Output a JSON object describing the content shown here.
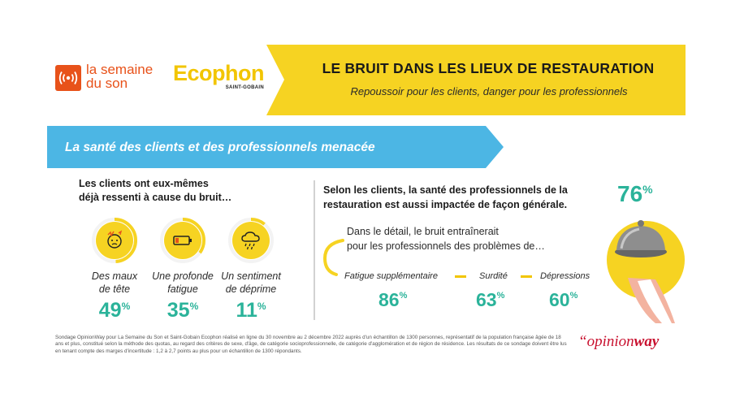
{
  "header": {
    "brand1_line1": "la semaine",
    "brand1_line2": "du son",
    "brand2": "Ecophon",
    "brand2_sub": "SAINT-GOBAIN",
    "title": "LE BRUIT DANS LES LIEUX DE RESTAURATION",
    "subtitle": "Repoussoir pour les clients, danger pour les professionnels"
  },
  "section": {
    "banner": "La santé des clients et des professionnels menacée"
  },
  "left": {
    "heading_line1": "Les clients ont eux-mêmes",
    "heading_line2": "déjà ressenti à cause du bruit…",
    "items": [
      {
        "icon": "headache-icon",
        "label1": "Des maux",
        "label2": "de tête",
        "value": "49",
        "unit": "%",
        "fraction": 0.49
      },
      {
        "icon": "low-battery-icon",
        "label1": "Une profonde",
        "label2": "fatigue",
        "value": "35",
        "unit": "%",
        "fraction": 0.35
      },
      {
        "icon": "rain-cloud-icon",
        "label1": "Un sentiment",
        "label2": "de déprime",
        "value": "11",
        "unit": "%",
        "fraction": 0.11
      }
    ]
  },
  "right": {
    "heading_line1": "Selon les clients, la santé des professionnels de la",
    "heading_line2": "restauration est aussi impactée de façon générale.",
    "main_value": "76",
    "main_unit": "%",
    "detail_line1": "Dans le détail, le bruit entraînerait",
    "detail_line2": "pour les professionnels des problèmes de…",
    "items": [
      {
        "label": "Fatigue supplémentaire",
        "value": "86",
        "unit": "%"
      },
      {
        "label": "Surdité",
        "value": "63",
        "unit": "%"
      },
      {
        "label": "Dépressions",
        "value": "60",
        "unit": "%"
      }
    ]
  },
  "footer": {
    "note": "Sondage OpinionWay pour La Semaine du Son et Saint-Gobain Ecophon réalisé en ligne du 30 novembre au 2 décembre 2022 auprès d'un échantillon de 1300 personnes, représentatif de la population française âgée de 18 ans et plus, constitué selon la méthode des quotas, au regard des critères de sexe, d'âge, de catégorie socioprofessionnelle, de catégorie d'agglomération et de région de résidence. Les résultats de ce sondage doivent être lus en tenant compte des marges d'incertitude : 1,2 à 2,7 points au plus pour un échantillon de 1300 répondants.",
    "logo_part1": "opinion",
    "logo_part2": "way",
    "logo_quote": "“"
  },
  "colors": {
    "yellow": "#f6d322",
    "teal": "#2bb39a",
    "blue": "#4cb6e4",
    "orange": "#e8521a",
    "red": "#c8102e"
  }
}
